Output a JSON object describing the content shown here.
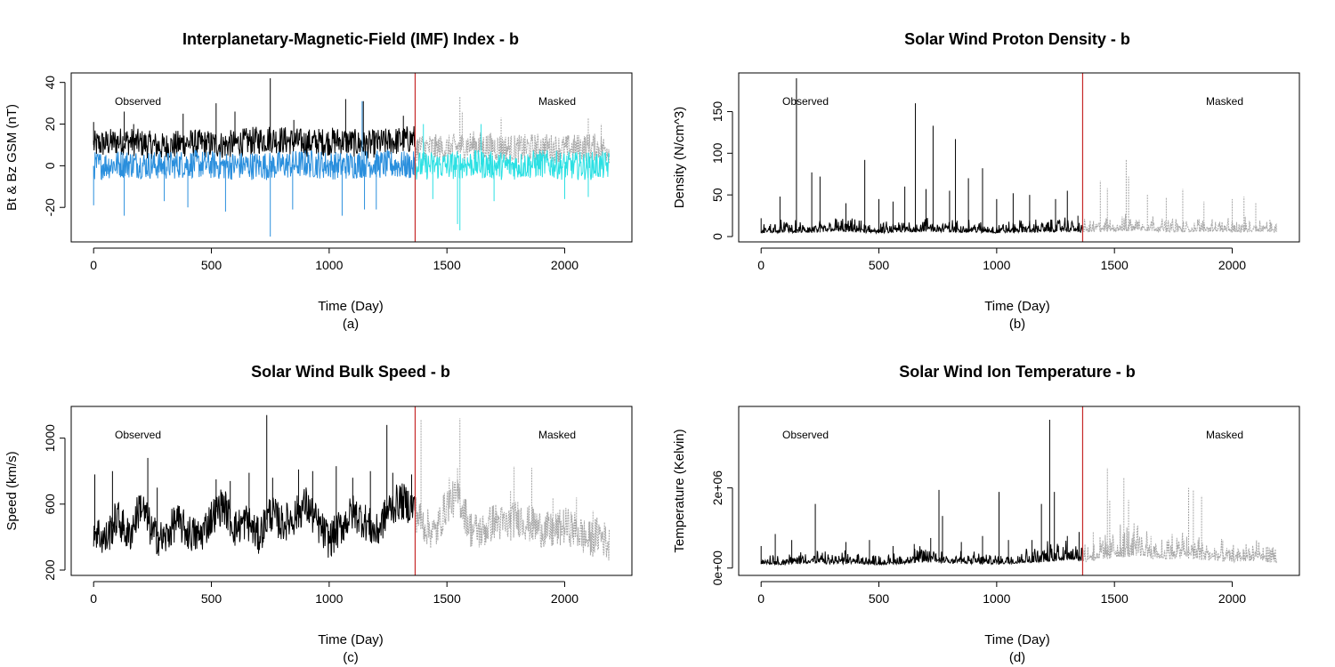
{
  "colors": {
    "observed": "#000000",
    "masked": "#A6A6A6",
    "imf_observed_bz": "#2A8FDD",
    "imf_masked_bz": "#2BE0E3",
    "split_line": "#C62828",
    "frame": "#000000"
  },
  "chart_data": [
    {
      "id": "a",
      "type": "line",
      "title": "Interplanetary-Magnetic-Field (IMF) Index - b",
      "xlabel": "Time (Day)",
      "sublabel": "(a)",
      "ylabel": "Bt & Bz GSM (nT)",
      "xlim": [
        0,
        2190
      ],
      "ylim": [
        -34,
        42
      ],
      "xticks": [
        0,
        500,
        1000,
        1500,
        2000
      ],
      "xtick_labels": [
        "0",
        "500",
        "1000",
        "1500",
        "2000"
      ],
      "yticks": [
        -20,
        0,
        20,
        40
      ],
      "ytick_labels": [
        "-20",
        "0",
        "20",
        "40"
      ],
      "split_x": 1365,
      "annotations": [
        "Observed",
        "Masked"
      ],
      "series": [
        {
          "style": "observed",
          "x": [
            0,
            130,
            300,
            395,
            555,
            750,
            900,
            1050,
            1150,
            1365
          ],
          "y": [
            10,
            12,
            9,
            11,
            10,
            13,
            11,
            12,
            10,
            13
          ],
          "spikes": [
            [
              0,
              21
            ],
            [
              130,
              26
            ],
            [
              170,
              20
            ],
            [
              380,
              25
            ],
            [
              520,
              30
            ],
            [
              600,
              26
            ],
            [
              750,
              42
            ],
            [
              850,
              22
            ],
            [
              1070,
              32
            ],
            [
              1145,
              31
            ],
            [
              1315,
              24
            ]
          ]
        },
        {
          "style": "imf_observed_bz",
          "x": [
            0,
            130,
            300,
            395,
            555,
            750,
            900,
            1050,
            1150,
            1365
          ],
          "y": [
            0,
            1,
            0,
            1,
            0,
            0,
            1,
            0,
            1,
            0
          ],
          "spikes": [
            [
              0,
              -19
            ],
            [
              130,
              -24
            ],
            [
              300,
              -17
            ],
            [
              400,
              -20
            ],
            [
              560,
              -22
            ],
            [
              750,
              -34
            ],
            [
              845,
              -21
            ],
            [
              1055,
              -24
            ],
            [
              1140,
              31
            ],
            [
              1150,
              -21
            ],
            [
              1200,
              -21
            ]
          ]
        },
        {
          "style": "masked",
          "x": [
            1365,
            1500,
            1600,
            1700,
            1800,
            1900,
            2000,
            2100,
            2190
          ],
          "y": [
            9,
            8,
            10,
            9,
            8,
            9,
            8,
            9,
            8
          ],
          "spikes": [
            [
              1555,
              33
            ],
            [
              1565,
              26
            ],
            [
              1730,
              23
            ],
            [
              2100,
              23
            ],
            [
              2155,
              20
            ]
          ]
        },
        {
          "style": "imf_masked_bz",
          "x": [
            1365,
            1500,
            1600,
            1700,
            1800,
            1900,
            2000,
            2100,
            2190
          ],
          "y": [
            0,
            0,
            1,
            0,
            0,
            1,
            0,
            0,
            0
          ],
          "spikes": [
            [
              1400,
              20
            ],
            [
              1440,
              -16
            ],
            [
              1545,
              -28
            ],
            [
              1555,
              -31
            ],
            [
              1645,
              20
            ],
            [
              1700,
              -17
            ],
            [
              2000,
              -16
            ],
            [
              2100,
              -15
            ]
          ]
        }
      ]
    },
    {
      "id": "b",
      "type": "line",
      "title": "Solar Wind Proton Density - b",
      "xlabel": "Time (Day)",
      "sublabel": "(b)",
      "ylabel": "Density (N/cm^3)",
      "xlim": [
        0,
        2190
      ],
      "ylim": [
        0,
        190
      ],
      "xticks": [
        0,
        500,
        1000,
        1500,
        2000
      ],
      "xtick_labels": [
        "0",
        "500",
        "1000",
        "1500",
        "2000"
      ],
      "yticks": [
        0,
        50,
        100,
        150
      ],
      "ytick_labels": [
        "0",
        "50",
        "100",
        "150"
      ],
      "split_x": 1365,
      "annotations": [
        "Observed",
        "Masked"
      ],
      "series": [
        {
          "style": "observed",
          "x": [
            0,
            100,
            200,
            300,
            400,
            500,
            600,
            700,
            800,
            900,
            1000,
            1100,
            1200,
            1300,
            1365
          ],
          "y": [
            4,
            5,
            4,
            6,
            5,
            4,
            5,
            6,
            5,
            5,
            4,
            5,
            5,
            6,
            5
          ],
          "spikes": [
            [
              0,
              22
            ],
            [
              40,
              15
            ],
            [
              80,
              48
            ],
            [
              150,
              190
            ],
            [
              215,
              77
            ],
            [
              250,
              72
            ],
            [
              360,
              40
            ],
            [
              440,
              92
            ],
            [
              500,
              45
            ],
            [
              560,
              42
            ],
            [
              610,
              60
            ],
            [
              655,
              160
            ],
            [
              700,
              57
            ],
            [
              730,
              133
            ],
            [
              800,
              55
            ],
            [
              825,
              117
            ],
            [
              880,
              70
            ],
            [
              940,
              82
            ],
            [
              1000,
              45
            ],
            [
              1070,
              52
            ],
            [
              1140,
              50
            ],
            [
              1250,
              45
            ],
            [
              1300,
              55
            ],
            [
              1345,
              25
            ]
          ]
        },
        {
          "style": "masked",
          "x": [
            1365,
            1500,
            1600,
            1700,
            1800,
            1900,
            2000,
            2100,
            2190
          ],
          "y": [
            5,
            6,
            7,
            6,
            5,
            6,
            5,
            6,
            5
          ],
          "spikes": [
            [
              1440,
              67
            ],
            [
              1470,
              58
            ],
            [
              1550,
              93
            ],
            [
              1560,
              72
            ],
            [
              1640,
              50
            ],
            [
              1720,
              47
            ],
            [
              1790,
              57
            ],
            [
              1880,
              42
            ],
            [
              2000,
              45
            ],
            [
              2050,
              48
            ],
            [
              2100,
              40
            ],
            [
              2160,
              20
            ]
          ]
        }
      ]
    },
    {
      "id": "c",
      "type": "line",
      "title": "Solar Wind Bulk Speed - b",
      "xlabel": "Time (Day)",
      "sublabel": "(c)",
      "ylabel": "Speed (km/s)",
      "xlim": [
        0,
        2190
      ],
      "ylim": [
        200,
        1160
      ],
      "xticks": [
        0,
        500,
        1000,
        1500,
        2000
      ],
      "xtick_labels": [
        "0",
        "500",
        "1000",
        "1500",
        "2000"
      ],
      "yticks": [
        200,
        600,
        1000
      ],
      "ytick_labels": [
        "200",
        "600",
        "1000"
      ],
      "split_x": 1365,
      "annotations": [
        "Observed",
        "Masked"
      ],
      "series": [
        {
          "style": "observed",
          "x": [
            0,
            50,
            100,
            150,
            200,
            250,
            300,
            350,
            400,
            450,
            500,
            550,
            600,
            650,
            700,
            750,
            800,
            850,
            900,
            950,
            1000,
            1050,
            1100,
            1150,
            1200,
            1250,
            1300,
            1365
          ],
          "y": [
            450,
            380,
            520,
            400,
            600,
            420,
            380,
            500,
            430,
            400,
            520,
            600,
            450,
            500,
            400,
            550,
            480,
            520,
            600,
            480,
            380,
            460,
            550,
            500,
            420,
            560,
            620,
            580
          ],
          "spikes": [
            [
              5,
              780
            ],
            [
              80,
              800
            ],
            [
              230,
              880
            ],
            [
              270,
              700
            ],
            [
              520,
              750
            ],
            [
              580,
              740
            ],
            [
              660,
              790
            ],
            [
              735,
              1140
            ],
            [
              760,
              760
            ],
            [
              870,
              810
            ],
            [
              930,
              800
            ],
            [
              1030,
              830
            ],
            [
              1100,
              760
            ],
            [
              1175,
              800
            ],
            [
              1245,
              1080
            ],
            [
              1270,
              790
            ],
            [
              1350,
              780
            ]
          ]
        },
        {
          "style": "masked",
          "x": [
            1365,
            1400,
            1450,
            1500,
            1550,
            1600,
            1650,
            1700,
            1750,
            1800,
            1850,
            1900,
            1950,
            2000,
            2050,
            2100,
            2150,
            2190
          ],
          "y": [
            550,
            480,
            420,
            600,
            650,
            450,
            430,
            500,
            470,
            520,
            480,
            450,
            430,
            470,
            440,
            380,
            420,
            350
          ],
          "spikes": [
            [
              1390,
              1110
            ],
            [
              1510,
              760
            ],
            [
              1545,
              820
            ],
            [
              1555,
              1120
            ],
            [
              1770,
              680
            ],
            [
              1785,
              830
            ],
            [
              1860,
              820
            ],
            [
              1950,
              640
            ],
            [
              2050,
              640
            ],
            [
              2120,
              560
            ]
          ]
        }
      ]
    },
    {
      "id": "d",
      "type": "line",
      "title": "Solar Wind Ion Temperature - b",
      "xlabel": "Time (Day)",
      "sublabel": "(d)",
      "ylabel": "Temperature (Kelvin)",
      "xlim": [
        0,
        2190
      ],
      "ylim": [
        -50000,
        3900000
      ],
      "xticks": [
        0,
        500,
        1000,
        1500,
        2000
      ],
      "xtick_labels": [
        "0",
        "500",
        "1000",
        "1500",
        "2000"
      ],
      "yticks": [
        0,
        2000000
      ],
      "ytick_labels": [
        "0e+00",
        "2e+06"
      ],
      "split_x": 1365,
      "annotations": [
        "Observed",
        "Masked"
      ],
      "series": [
        {
          "style": "observed",
          "x": [
            0,
            100,
            200,
            300,
            400,
            500,
            600,
            700,
            800,
            900,
            1000,
            1100,
            1200,
            1300,
            1365
          ],
          "y": [
            100000,
            80000,
            120000,
            90000,
            110000,
            80000,
            100000,
            150000,
            120000,
            100000,
            90000,
            120000,
            150000,
            200000,
            180000
          ],
          "spikes": [
            [
              0,
              550000
            ],
            [
              60,
              850000
            ],
            [
              130,
              700000
            ],
            [
              230,
              1600000
            ],
            [
              360,
              650000
            ],
            [
              460,
              700000
            ],
            [
              560,
              550000
            ],
            [
              650,
              600000
            ],
            [
              720,
              750000
            ],
            [
              755,
              1950000
            ],
            [
              770,
              1300000
            ],
            [
              850,
              650000
            ],
            [
              940,
              800000
            ],
            [
              1010,
              1900000
            ],
            [
              1050,
              700000
            ],
            [
              1150,
              700000
            ],
            [
              1190,
              1600000
            ],
            [
              1225,
              3700000
            ],
            [
              1245,
              1900000
            ],
            [
              1300,
              800000
            ],
            [
              1350,
              900000
            ]
          ]
        },
        {
          "style": "masked",
          "x": [
            1365,
            1500,
            1600,
            1700,
            1800,
            1900,
            2000,
            2100,
            2190
          ],
          "y": [
            150000,
            250000,
            300000,
            200000,
            250000,
            180000,
            150000,
            180000,
            120000
          ],
          "spikes": [
            [
              1410,
              900000
            ],
            [
              1470,
              2500000
            ],
            [
              1480,
              1700000
            ],
            [
              1540,
              2250000
            ],
            [
              1560,
              1700000
            ],
            [
              1655,
              800000
            ],
            [
              1745,
              850000
            ],
            [
              1815,
              2000000
            ],
            [
              1835,
              1950000
            ],
            [
              1870,
              1800000
            ],
            [
              1960,
              700000
            ],
            [
              2090,
              400000
            ],
            [
              2150,
              550000
            ]
          ]
        }
      ]
    }
  ]
}
